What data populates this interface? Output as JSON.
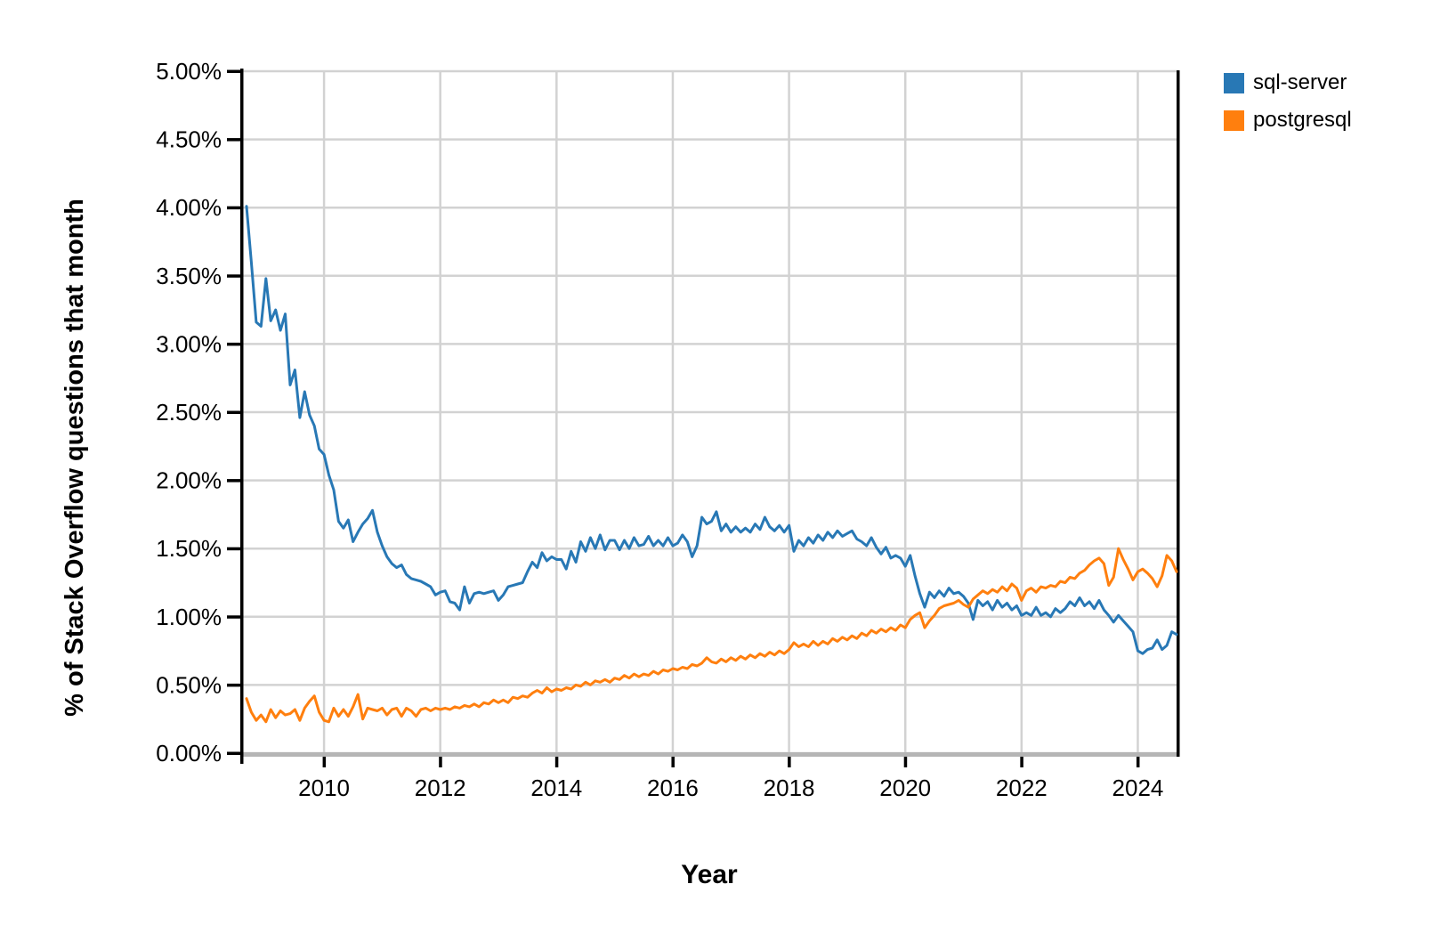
{
  "chart_data": {
    "type": "line",
    "title": "",
    "xlabel": "Year",
    "ylabel": "% of Stack Overflow questions that month",
    "x_start": "2008-08",
    "x_end": "2024-08",
    "x_interval": "monthly",
    "ylim": [
      0,
      5
    ],
    "grid": true,
    "legend_position": "top-right-outside",
    "y_ticks": [
      {
        "v": 5.0,
        "label": "5.00%"
      },
      {
        "v": 4.5,
        "label": "4.50%"
      },
      {
        "v": 4.0,
        "label": "4.00%"
      },
      {
        "v": 3.5,
        "label": "3.50%"
      },
      {
        "v": 3.0,
        "label": "3.00%"
      },
      {
        "v": 2.5,
        "label": "2.50%"
      },
      {
        "v": 2.0,
        "label": "2.00%"
      },
      {
        "v": 1.5,
        "label": "1.50%"
      },
      {
        "v": 1.0,
        "label": "1.00%"
      },
      {
        "v": 0.5,
        "label": "0.50%"
      },
      {
        "v": 0.0,
        "label": "0.00%"
      }
    ],
    "x_ticks": [
      {
        "v": 2010,
        "label": "2010"
      },
      {
        "v": 2012,
        "label": "2012"
      },
      {
        "v": 2014,
        "label": "2014"
      },
      {
        "v": 2016,
        "label": "2016"
      },
      {
        "v": 2018,
        "label": "2018"
      },
      {
        "v": 2020,
        "label": "2020"
      },
      {
        "v": 2022,
        "label": "2022"
      },
      {
        "v": 2024,
        "label": "2024"
      }
    ],
    "series": [
      {
        "name": "sql-server",
        "color": "#2878b5",
        "values": [
          4.01,
          3.6,
          3.16,
          3.13,
          3.48,
          3.17,
          3.25,
          3.1,
          3.22,
          2.7,
          2.81,
          2.46,
          2.65,
          2.48,
          2.4,
          2.23,
          2.19,
          2.04,
          1.93,
          1.7,
          1.65,
          1.71,
          1.55,
          1.62,
          1.68,
          1.72,
          1.78,
          1.62,
          1.52,
          1.44,
          1.39,
          1.36,
          1.38,
          1.31,
          1.28,
          1.27,
          1.26,
          1.24,
          1.22,
          1.16,
          1.18,
          1.19,
          1.11,
          1.1,
          1.05,
          1.22,
          1.1,
          1.17,
          1.18,
          1.17,
          1.18,
          1.19,
          1.12,
          1.16,
          1.22,
          1.23,
          1.24,
          1.25,
          1.33,
          1.4,
          1.36,
          1.47,
          1.41,
          1.44,
          1.42,
          1.42,
          1.35,
          1.48,
          1.4,
          1.55,
          1.48,
          1.58,
          1.5,
          1.6,
          1.49,
          1.56,
          1.56,
          1.49,
          1.56,
          1.5,
          1.58,
          1.52,
          1.53,
          1.59,
          1.52,
          1.56,
          1.52,
          1.58,
          1.52,
          1.54,
          1.6,
          1.55,
          1.44,
          1.52,
          1.73,
          1.68,
          1.7,
          1.77,
          1.63,
          1.68,
          1.62,
          1.66,
          1.62,
          1.65,
          1.62,
          1.68,
          1.64,
          1.73,
          1.66,
          1.63,
          1.67,
          1.62,
          1.67,
          1.48,
          1.56,
          1.52,
          1.58,
          1.54,
          1.6,
          1.56,
          1.62,
          1.58,
          1.63,
          1.59,
          1.61,
          1.63,
          1.57,
          1.55,
          1.52,
          1.58,
          1.51,
          1.46,
          1.51,
          1.43,
          1.45,
          1.43,
          1.37,
          1.45,
          1.3,
          1.17,
          1.07,
          1.18,
          1.14,
          1.19,
          1.15,
          1.21,
          1.17,
          1.18,
          1.15,
          1.1,
          0.98,
          1.12,
          1.08,
          1.11,
          1.05,
          1.12,
          1.07,
          1.1,
          1.05,
          1.08,
          1.01,
          1.03,
          1.01,
          1.07,
          1.01,
          1.03,
          1.0,
          1.06,
          1.03,
          1.06,
          1.11,
          1.08,
          1.14,
          1.08,
          1.11,
          1.06,
          1.12,
          1.05,
          1.01,
          0.96,
          1.01,
          0.97,
          0.93,
          0.89,
          0.75,
          0.73,
          0.76,
          0.77,
          0.83,
          0.76,
          0.79,
          0.89,
          0.87
        ]
      },
      {
        "name": "postgresql",
        "color": "#ff7f0e",
        "values": [
          0.4,
          0.3,
          0.24,
          0.28,
          0.23,
          0.32,
          0.26,
          0.31,
          0.28,
          0.29,
          0.32,
          0.24,
          0.33,
          0.38,
          0.42,
          0.3,
          0.24,
          0.23,
          0.33,
          0.27,
          0.32,
          0.27,
          0.34,
          0.43,
          0.25,
          0.33,
          0.32,
          0.31,
          0.33,
          0.28,
          0.32,
          0.33,
          0.27,
          0.33,
          0.31,
          0.27,
          0.32,
          0.33,
          0.31,
          0.33,
          0.32,
          0.33,
          0.32,
          0.34,
          0.33,
          0.35,
          0.34,
          0.36,
          0.34,
          0.37,
          0.36,
          0.39,
          0.37,
          0.39,
          0.37,
          0.41,
          0.4,
          0.42,
          0.41,
          0.44,
          0.46,
          0.44,
          0.48,
          0.45,
          0.47,
          0.46,
          0.48,
          0.47,
          0.5,
          0.49,
          0.52,
          0.5,
          0.53,
          0.52,
          0.54,
          0.52,
          0.55,
          0.54,
          0.57,
          0.55,
          0.58,
          0.56,
          0.58,
          0.57,
          0.6,
          0.58,
          0.61,
          0.6,
          0.62,
          0.61,
          0.63,
          0.62,
          0.65,
          0.64,
          0.66,
          0.7,
          0.67,
          0.66,
          0.69,
          0.67,
          0.7,
          0.68,
          0.71,
          0.69,
          0.72,
          0.7,
          0.73,
          0.71,
          0.74,
          0.72,
          0.75,
          0.73,
          0.76,
          0.81,
          0.78,
          0.8,
          0.78,
          0.82,
          0.79,
          0.82,
          0.8,
          0.84,
          0.82,
          0.85,
          0.83,
          0.86,
          0.84,
          0.88,
          0.86,
          0.9,
          0.88,
          0.91,
          0.89,
          0.92,
          0.9,
          0.94,
          0.92,
          0.98,
          1.01,
          1.03,
          0.92,
          0.97,
          1.01,
          1.06,
          1.08,
          1.09,
          1.1,
          1.12,
          1.09,
          1.07,
          1.13,
          1.16,
          1.19,
          1.17,
          1.2,
          1.18,
          1.22,
          1.19,
          1.24,
          1.21,
          1.12,
          1.19,
          1.21,
          1.18,
          1.22,
          1.21,
          1.23,
          1.22,
          1.26,
          1.25,
          1.29,
          1.28,
          1.32,
          1.34,
          1.38,
          1.41,
          1.43,
          1.39,
          1.23,
          1.29,
          1.5,
          1.42,
          1.35,
          1.27,
          1.33,
          1.35,
          1.32,
          1.28,
          1.22,
          1.3,
          1.45,
          1.41,
          1.33
        ]
      }
    ]
  }
}
